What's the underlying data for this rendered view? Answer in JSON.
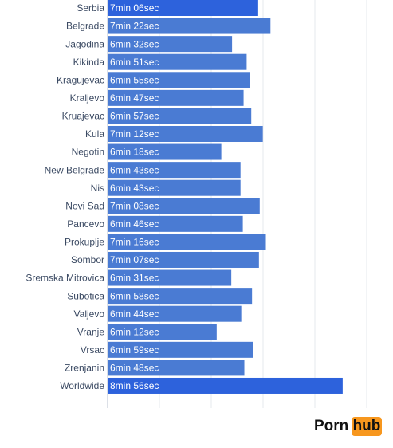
{
  "chart_data": {
    "type": "bar",
    "orientation": "horizontal",
    "categories": [
      "Serbia",
      "Belgrade",
      "Jagodina",
      "Kikinda",
      "Kragujevac",
      "Kraljevo",
      "Kruajevac",
      "Kula",
      "Negotin",
      "New Belgrade",
      "Nis",
      "Novi Sad",
      "Pancevo",
      "Prokuplje",
      "Sombor",
      "Sremska Mitrovica",
      "Subotica",
      "Valjevo",
      "Vranje",
      "Vrsac",
      "Zrenjanin",
      "Worldwide"
    ],
    "values": [
      426,
      442,
      392,
      411,
      415,
      407,
      417,
      432,
      378,
      403,
      403,
      428,
      406,
      436,
      427,
      391,
      418,
      404,
      372,
      419,
      408,
      536
    ],
    "value_labels": [
      "7min 06sec",
      "7min 22sec",
      "6min 32sec",
      "6min 51sec",
      "6min 55sec",
      "6min 47sec",
      "6min 57sec",
      "7min 12sec",
      "6min 18sec",
      "6min 43sec",
      "6min 43sec",
      "7min 08sec",
      "6min 46sec",
      "7min 16sec",
      "7min 07sec",
      "6min 31sec",
      "6min 58sec",
      "6min 44sec",
      "6min 12sec",
      "6min 59sec",
      "6min 48sec",
      "8min 56sec"
    ],
    "colors": [
      "#2d62dc",
      "#4a7bd3",
      "#4a7bd3",
      "#4a7bd3",
      "#4a7bd3",
      "#4a7bd3",
      "#4a7bd3",
      "#4a7bd3",
      "#4a7bd3",
      "#4a7bd3",
      "#4a7bd3",
      "#4a7bd3",
      "#4a7bd3",
      "#4a7bd3",
      "#4a7bd3",
      "#4a7bd3",
      "#4a7bd3",
      "#4a7bd3",
      "#4a7bd3",
      "#4a7bd3",
      "#4a7bd3",
      "#2d62dc"
    ],
    "xlim": [
      230,
      560
    ]
  },
  "logo": {
    "left": "Porn",
    "right": "hub"
  }
}
